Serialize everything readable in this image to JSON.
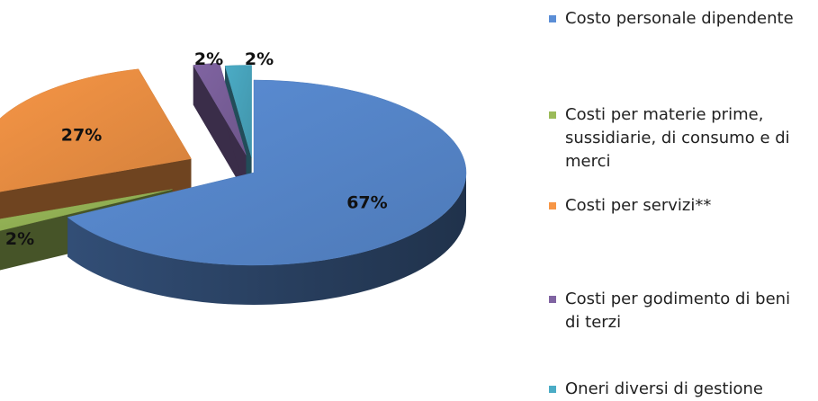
{
  "chart_data": {
    "type": "pie",
    "style": "3d-exploded",
    "series": [
      {
        "name": "Costo personale dipendente",
        "value": 67,
        "label": "67%",
        "color": "#5B8ED6"
      },
      {
        "name": "Costi per materie prime, sussidiarie, di consumo e di merci",
        "value": 2,
        "label": "2%",
        "color": "#9BBB59"
      },
      {
        "name": "Costi per servizi**",
        "value": 27,
        "label": "27%",
        "color": "#F79646"
      },
      {
        "name": "Costi per godimento di beni di terzi",
        "value": 2,
        "label": "2%",
        "color": "#8064A2"
      },
      {
        "name": "Oneri diversi di gestione",
        "value": 2,
        "label": "2%",
        "color": "#4BACC6"
      }
    ],
    "legend_position": "right"
  }
}
